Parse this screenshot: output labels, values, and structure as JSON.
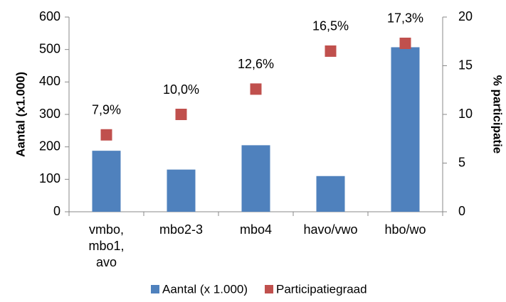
{
  "chart_data": {
    "type": "bar",
    "categories": [
      "vmbo, mbo1, avo",
      "mbo2-3",
      "mbo4",
      "havo/vwo",
      "hbo/wo"
    ],
    "series": [
      {
        "name": "Aantal (x 1.000)",
        "color": "#4f81bd",
        "type": "bar",
        "values": [
          188,
          130,
          205,
          110,
          507
        ]
      },
      {
        "name": "Participatiegraad",
        "color": "#c0504d",
        "type": "scatter",
        "axis": "y2",
        "values": [
          7.9,
          10.0,
          12.6,
          16.5,
          17.3
        ],
        "value_labels": [
          "7,9%",
          "10,0%",
          "12,6%",
          "16,5%",
          "17,3%"
        ]
      }
    ],
    "ylabel": "Aantal (x1.000)",
    "y2label": "% participatie",
    "ylim": [
      0,
      600
    ],
    "yticks": [
      0,
      100,
      200,
      300,
      400,
      500,
      600
    ],
    "y2lim": [
      0,
      20
    ],
    "y2ticks": [
      0,
      5,
      10,
      15,
      20
    ],
    "grid": false,
    "legend": "bottom"
  }
}
